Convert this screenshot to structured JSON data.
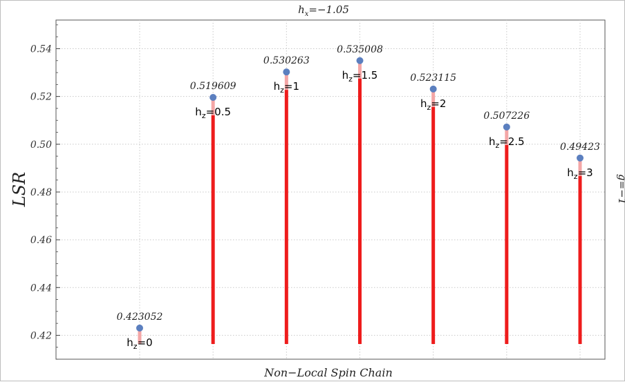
{
  "chart_data": {
    "type": "bar",
    "title": "h_x = −1.05",
    "title_parts": {
      "base": "h",
      "sub": "x",
      "rest": "=−1.05"
    },
    "xlabel": "Non−Local Spin Chain",
    "ylabel": "LSR",
    "right_label": "g=−1",
    "ylim": [
      0.41,
      0.552
    ],
    "yticks": [
      "0.42",
      "0.44",
      "0.46",
      "0.48",
      "0.50",
      "0.52",
      "0.54"
    ],
    "grid": true,
    "categories": [
      "h_z=0",
      "h_z=0.5",
      "h_z=1",
      "h_z=1.5",
      "h_z=2",
      "h_z=2.5",
      "h_z=3"
    ],
    "category_parts": [
      {
        "base": "h",
        "sub": "z",
        "rest": "=0"
      },
      {
        "base": "h",
        "sub": "z",
        "rest": "=0.5"
      },
      {
        "base": "h",
        "sub": "z",
        "rest": "=1"
      },
      {
        "base": "h",
        "sub": "z",
        "rest": "=1.5"
      },
      {
        "base": "h",
        "sub": "z",
        "rest": "=2"
      },
      {
        "base": "h",
        "sub": "z",
        "rest": "=2.5"
      },
      {
        "base": "h",
        "sub": "z",
        "rest": "=3"
      }
    ],
    "values": [
      0.423052,
      0.519609,
      0.530263,
      0.535008,
      0.523115,
      0.507226,
      0.49423
    ],
    "value_labels": [
      "0.423052",
      "0.519609",
      "0.530263",
      "0.535008",
      "0.523115",
      "0.507226",
      "0.49423"
    ],
    "colors": {
      "stem": "#ee1c1c",
      "stem_light": "#f4a6a6",
      "marker": "#5b7fbf",
      "grid": "#c8c8c8",
      "axis": "#444444"
    }
  }
}
